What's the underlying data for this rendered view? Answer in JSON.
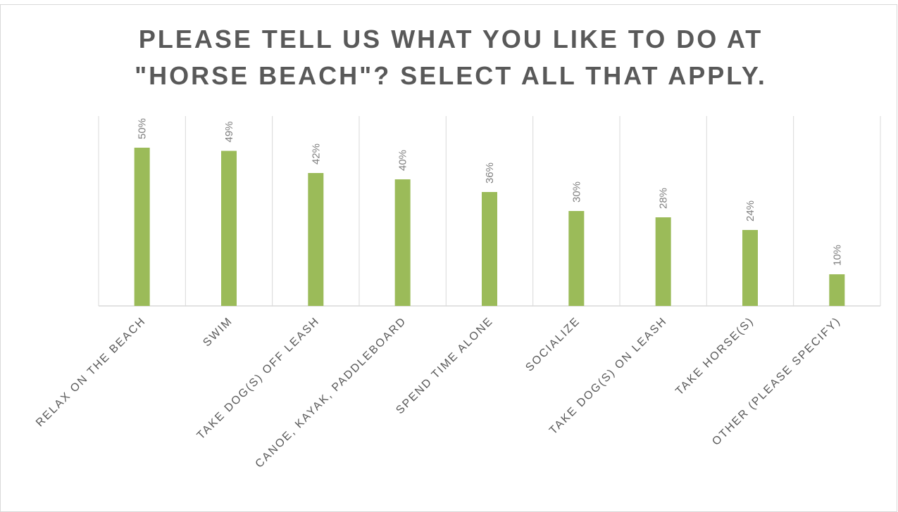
{
  "chart_data": {
    "type": "bar",
    "title": "PLEASE TELL US WHAT YOU LIKE TO DO AT \"HORSE BEACH\"? SELECT ALL THAT APPLY.",
    "categories": [
      "RELAX ON THE BEACH",
      "SWIM",
      "TAKE DOG(S) OFF LEASH",
      "CANOE, KAYAK, PADDLEBOARD",
      "SPEND TIME ALONE",
      "SOCIALIZE",
      "TAKE DOG(S) ON LEASH",
      "TAKE HORSE(S)",
      "OTHER (PLEASE SPECIFY)"
    ],
    "values": [
      50,
      49,
      42,
      40,
      36,
      30,
      28,
      24,
      10
    ],
    "value_labels": [
      "50%",
      "49%",
      "42%",
      "40%",
      "36%",
      "30%",
      "28%",
      "24%",
      "10%"
    ],
    "color": "#9bbb59",
    "ylim": [
      0,
      60
    ]
  }
}
